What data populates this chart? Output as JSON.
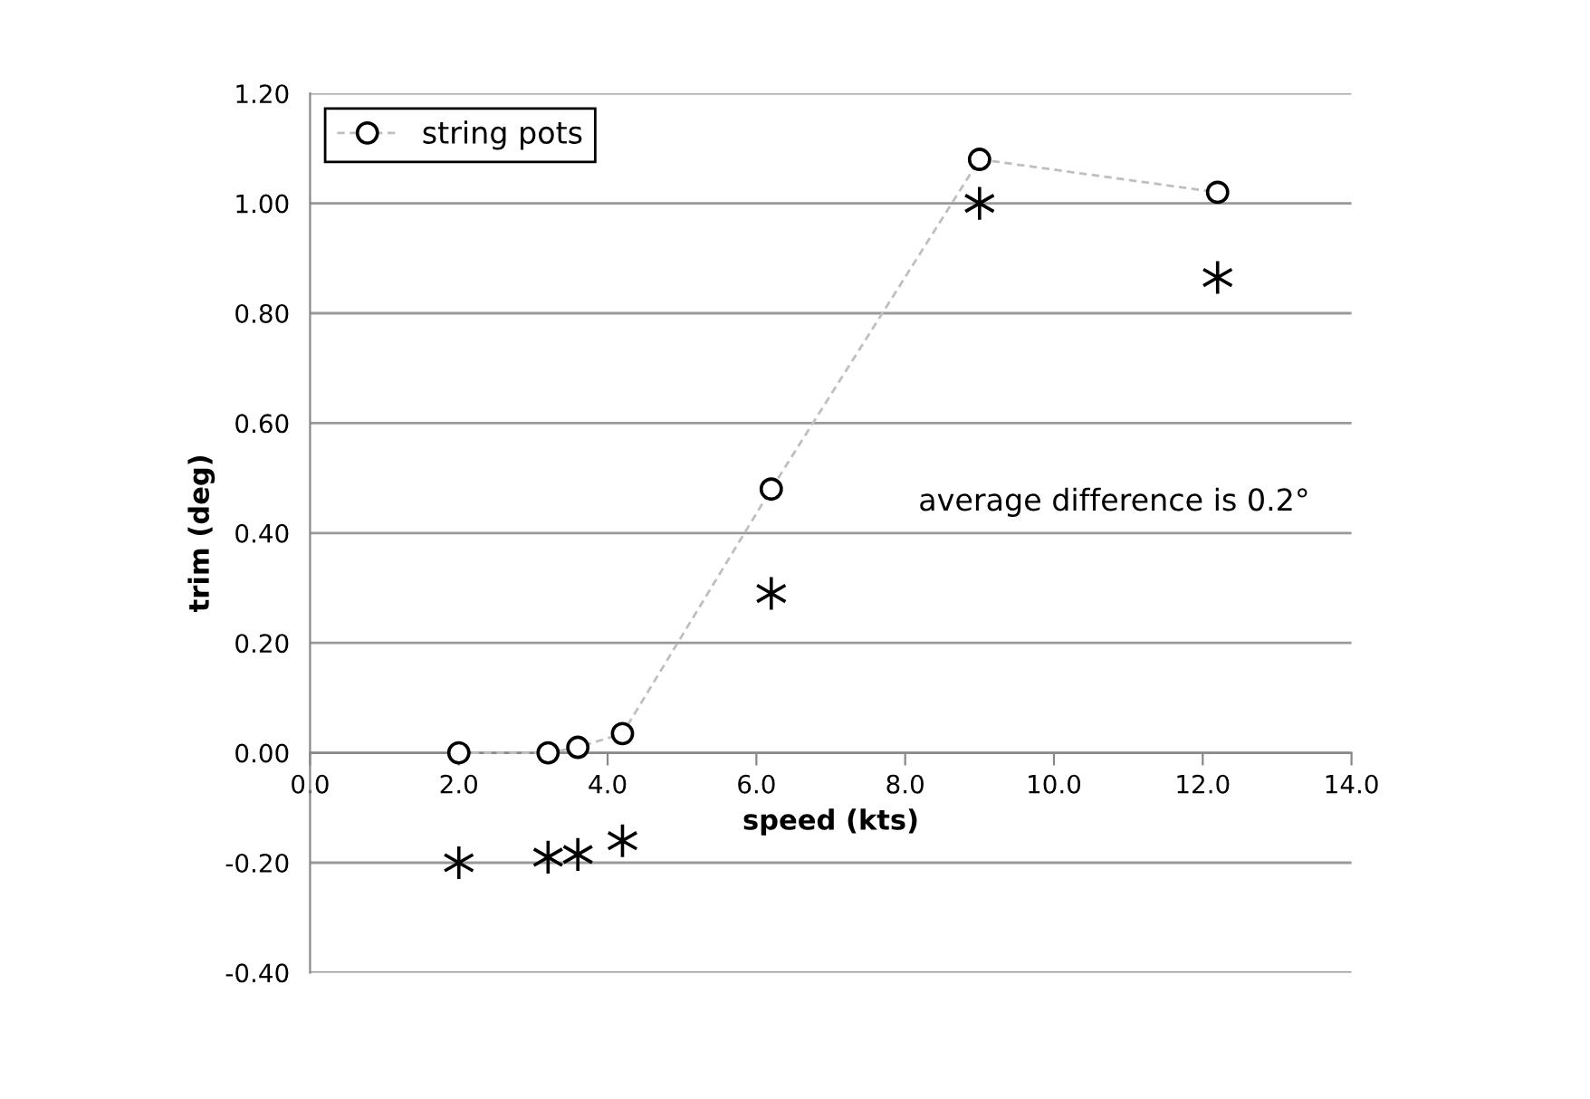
{
  "chart_data": {
    "type": "scatter",
    "xlabel": "speed (kts)",
    "ylabel": "trim (deg)",
    "series": [
      {
        "name": "string pots",
        "type": "line",
        "color": "#bfbfbf",
        "line_style": "dashed",
        "marker": "circle",
        "x": [
          2.0,
          3.2,
          3.6,
          4.2,
          6.2,
          9.0,
          12.2
        ],
        "values": [
          0.0,
          0.0,
          0.01,
          0.035,
          0.48,
          1.08,
          1.02
        ]
      },
      {
        "color": "#000000",
        "marker": "cross",
        "x": [
          2.0,
          3.2,
          3.6,
          4.2,
          6.2,
          9.0,
          12.2
        ],
        "values": [
          -0.2,
          -0.19,
          -0.185,
          -0.16,
          0.29,
          1.0,
          0.865
        ]
      }
    ],
    "xlim": [
      0,
      14
    ],
    "ylim": [
      -0.4,
      1.2
    ],
    "xticks": [
      {
        "value": 0,
        "label": "0.0"
      },
      {
        "value": 2,
        "label": "2.0"
      },
      {
        "value": 4,
        "label": "4.0"
      },
      {
        "value": 6,
        "label": "6.0"
      },
      {
        "value": 8,
        "label": "8.0"
      },
      {
        "value": 10,
        "label": "10.0"
      },
      {
        "value": 12,
        "label": "12.0"
      },
      {
        "value": 14,
        "label": "14.0"
      }
    ],
    "yticks": [
      {
        "value": -0.4,
        "label": "-0.40"
      },
      {
        "value": -0.2,
        "label": "-0.20"
      },
      {
        "value": 0,
        "label": "0.00"
      },
      {
        "value": 0.2,
        "label": "0.20"
      },
      {
        "value": 0.4,
        "label": "0.40"
      },
      {
        "value": 0.6,
        "label": "0.60"
      },
      {
        "value": 0.8,
        "label": "0.80"
      },
      {
        "value": 1.0,
        "label": "1.00"
      },
      {
        "value": 1.2,
        "label": "1.20"
      }
    ],
    "grid": "y",
    "legend": "top left",
    "annotations": [
      "average difference is 0.2°"
    ]
  }
}
